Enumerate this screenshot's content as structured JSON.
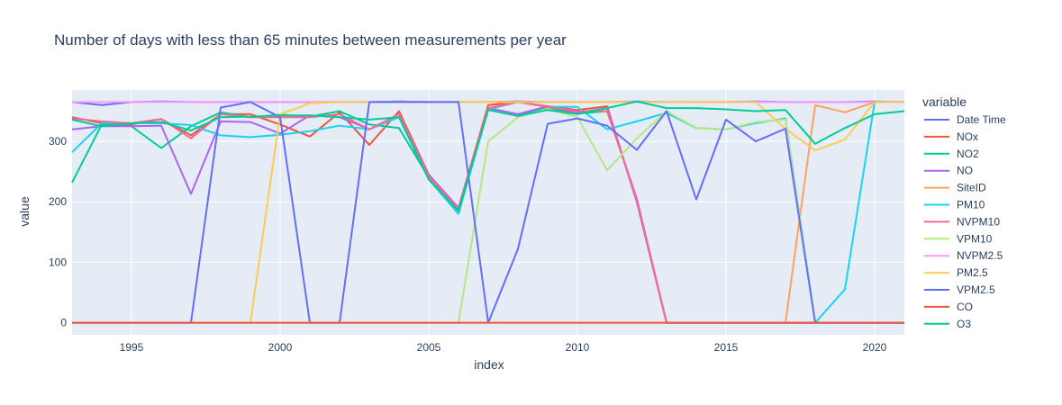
{
  "chart_data": {
    "type": "line",
    "title": "Number of days with less than 65 minutes between measurements per year",
    "xlabel": "index",
    "ylabel": "value",
    "xlim": [
      1993,
      2021
    ],
    "ylim": [
      -20,
      385
    ],
    "x_ticks": [
      1995,
      2000,
      2005,
      2010,
      2015,
      2020
    ],
    "y_ticks": [
      0,
      100,
      200,
      300
    ],
    "legend_title": "variable",
    "legend_position": "right",
    "colors": {
      "plot_background": "#e5ecf6",
      "grid": "#ffffff",
      "text": "#2a3f5f"
    },
    "x": [
      1993,
      1994,
      1995,
      1996,
      1997,
      1998,
      1999,
      2000,
      2001,
      2002,
      2003,
      2004,
      2005,
      2006,
      2007,
      2008,
      2009,
      2010,
      2011,
      2012,
      2013,
      2014,
      2015,
      2016,
      2017,
      2018,
      2019,
      2020,
      2021
    ],
    "series": [
      {
        "name": "Date Time",
        "color": "#636efa",
        "values": [
          365,
          360,
          365,
          366,
          365,
          365,
          365,
          365,
          365,
          365,
          365,
          366,
          365,
          365,
          365,
          366,
          365,
          365,
          365,
          366,
          365,
          365,
          365,
          366,
          365,
          365,
          365,
          366,
          365
        ]
      },
      {
        "name": "NOx",
        "color": "#EF553B",
        "values": [
          340,
          330,
          328,
          337,
          310,
          345,
          345,
          328,
          308,
          348,
          294,
          350,
          245,
          190,
          360,
          365,
          358,
          352,
          358,
          200,
          0,
          0,
          0,
          0,
          0,
          0,
          0,
          0,
          0
        ]
      },
      {
        "name": "NO2",
        "color": "#00cc96",
        "values": [
          232,
          328,
          325,
          289,
          325,
          348,
          340,
          344,
          341,
          350,
          328,
          322,
          240,
          185,
          355,
          345,
          355,
          346,
          350,
          205,
          0,
          0,
          0,
          0,
          0,
          0,
          0,
          0,
          0
        ]
      },
      {
        "name": "NO",
        "color": "#ab63fa",
        "values": [
          320,
          325,
          325,
          326,
          213,
          333,
          332,
          313,
          343,
          340,
          320,
          345,
          245,
          190,
          355,
          345,
          358,
          347,
          355,
          200,
          0,
          0,
          0,
          0,
          0,
          0,
          0,
          0,
          0
        ]
      },
      {
        "name": "SiteID",
        "color": "#FFA15A",
        "values": [
          0,
          0,
          0,
          0,
          0,
          0,
          0,
          0,
          0,
          0,
          0,
          0,
          0,
          0,
          0,
          0,
          0,
          0,
          0,
          0,
          0,
          0,
          0,
          0,
          0,
          360,
          348,
          365,
          365
        ]
      },
      {
        "name": "PM10",
        "color": "#19d3f3",
        "values": [
          282,
          330,
          330,
          330,
          327,
          310,
          307,
          311,
          317,
          326,
          320,
          340,
          237,
          180,
          353,
          365,
          357,
          357,
          320,
          333,
          347,
          322,
          320,
          330,
          338,
          0,
          55,
          365,
          365
        ]
      },
      {
        "name": "NVPM10",
        "color": "#FF6692",
        "values": [
          338,
          333,
          330,
          337,
          305,
          345,
          340,
          340,
          340,
          345,
          320,
          345,
          242,
          188,
          355,
          365,
          357,
          350,
          350,
          205,
          0,
          0,
          0,
          0,
          0,
          0,
          0,
          0,
          0
        ]
      },
      {
        "name": "VPM10",
        "color": "#B6E880",
        "values": [
          0,
          0,
          0,
          0,
          0,
          0,
          0,
          0,
          0,
          0,
          0,
          0,
          0,
          0,
          300,
          340,
          354,
          340,
          252,
          305,
          350,
          322,
          320,
          332,
          336,
          0,
          0,
          0,
          0
        ]
      },
      {
        "name": "NVPM2.5",
        "color": "#FF97FF",
        "values": [
          365,
          365,
          365,
          365,
          365,
          365,
          365,
          365,
          365,
          365,
          365,
          365,
          365,
          365,
          365,
          365,
          365,
          365,
          365,
          365,
          365,
          365,
          365,
          365,
          365,
          365,
          365,
          365,
          365
        ]
      },
      {
        "name": "PM2.5",
        "color": "#FECB52",
        "values": [
          0,
          0,
          0,
          0,
          0,
          0,
          0,
          345,
          363,
          365,
          365,
          365,
          365,
          365,
          365,
          365,
          365,
          365,
          365,
          365,
          365,
          365,
          365,
          365,
          321,
          285,
          303,
          365,
          365
        ]
      },
      {
        "name": "VPM2.5",
        "color": "#636efa",
        "values": [
          0,
          0,
          0,
          0,
          0,
          356,
          365,
          340,
          0,
          0,
          365,
          365,
          365,
          365,
          0,
          122,
          329,
          338,
          326,
          286,
          350,
          204,
          336,
          300,
          321,
          0,
          0,
          0,
          0
        ]
      },
      {
        "name": "CO",
        "color": "#EF553B",
        "values": [
          0,
          0,
          0,
          0,
          0,
          0,
          0,
          0,
          0,
          0,
          0,
          0,
          0,
          0,
          0,
          0,
          0,
          0,
          0,
          0,
          0,
          0,
          0,
          0,
          0,
          0,
          0,
          0,
          0
        ]
      },
      {
        "name": "O3",
        "color": "#00cc96",
        "values": [
          336,
          325,
          330,
          332,
          318,
          340,
          341,
          343,
          343,
          340,
          336,
          340,
          237,
          185,
          352,
          342,
          352,
          345,
          355,
          366,
          355,
          355,
          353,
          350,
          352,
          296,
          322,
          345,
          350
        ]
      }
    ]
  }
}
